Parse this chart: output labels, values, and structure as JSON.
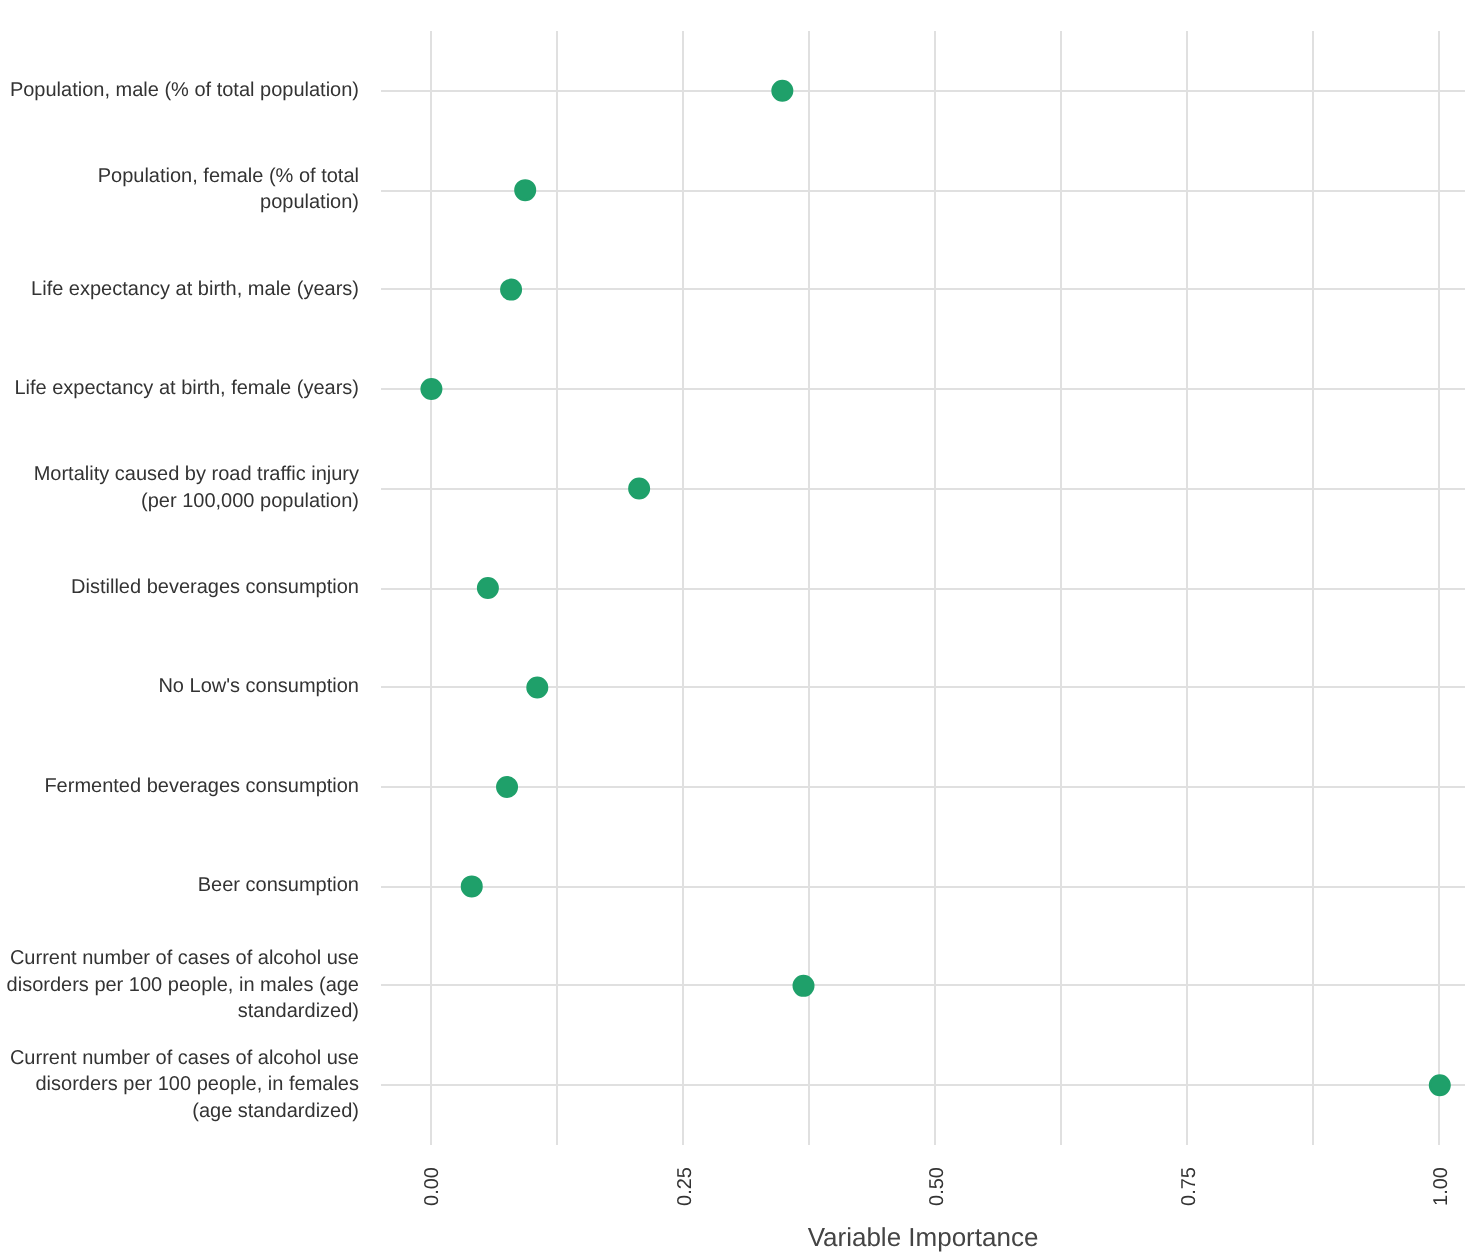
{
  "chart_data": {
    "type": "scatter",
    "xlabel": "Variable Importance",
    "categories": [
      "Population, male (% of total population)",
      "Population, female (% of total population)",
      "Life expectancy at birth, male (years)",
      "Life expectancy at birth, female (years)",
      "Mortality caused by road traffic injury (per 100,000 population)",
      "Distilled beverages consumption",
      "No Low's consumption",
      "Fermented beverages consumption",
      "Beer consumption",
      "Current number of cases of alcohol use disorders per 100 people, in males (age standardized)",
      "Current number of cases of alcohol use disorders per 100 people, in females (age standardized)"
    ],
    "values": [
      0.348,
      0.093,
      0.079,
      0.0,
      0.206,
      0.056,
      0.105,
      0.075,
      0.04,
      0.369,
      1.0
    ],
    "orientation": "horizontal",
    "color": "#1fa06a",
    "marker": "circle",
    "grid": true,
    "xlim": [
      -0.05,
      1.025
    ],
    "xticks": [
      {
        "value": 0,
        "label": "0.00"
      },
      {
        "value": 0.125,
        "label": null
      },
      {
        "value": 0.25,
        "label": "0.25"
      },
      {
        "value": 0.375,
        "label": null
      },
      {
        "value": 0.5,
        "label": "0.50"
      },
      {
        "value": 0.625,
        "label": null
      },
      {
        "value": 0.75,
        "label": "0.75"
      },
      {
        "value": 0.875,
        "label": null
      },
      {
        "value": 1,
        "label": "1.00"
      }
    ]
  }
}
